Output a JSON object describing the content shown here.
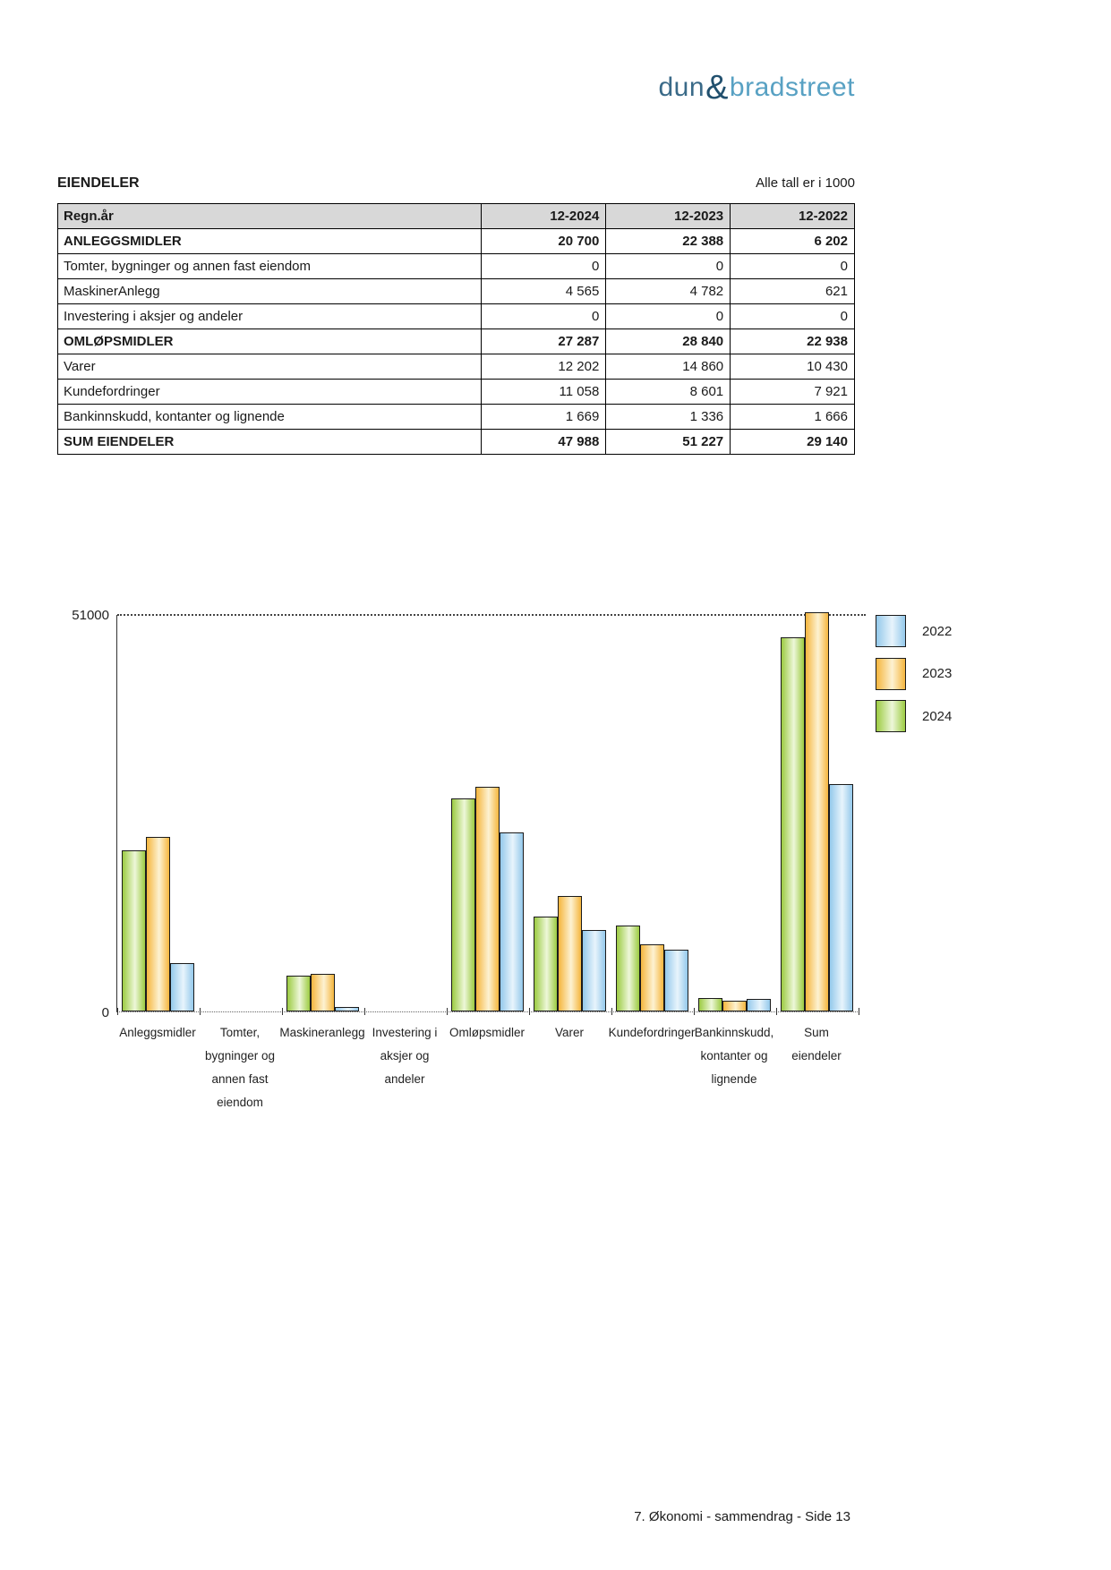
{
  "logo": {
    "part1": "dun",
    "amp": "&",
    "part2": "bradstreet"
  },
  "header": {
    "title": "EIENDELER",
    "note": "Alle tall er i 1000"
  },
  "table": {
    "year_label": "Regn.år",
    "columns": [
      "12-2024",
      "12-2023",
      "12-2022"
    ],
    "rows": [
      {
        "label": "ANLEGGSMIDLER",
        "values": [
          "20 700",
          "22 388",
          "6 202"
        ],
        "bold": true
      },
      {
        "label": "Tomter, bygninger og annen fast eiendom",
        "values": [
          "0",
          "0",
          "0"
        ],
        "bold": false
      },
      {
        "label": "MaskinerAnlegg",
        "values": [
          "4 565",
          "4 782",
          "621"
        ],
        "bold": false
      },
      {
        "label": "Investering i aksjer og andeler",
        "values": [
          "0",
          "0",
          "0"
        ],
        "bold": false
      },
      {
        "label": "OMLØPSMIDLER",
        "values": [
          "27 287",
          "28 840",
          "22 938"
        ],
        "bold": true
      },
      {
        "label": "Varer",
        "values": [
          "12 202",
          "14 860",
          "10 430"
        ],
        "bold": false
      },
      {
        "label": "Kundefordringer",
        "values": [
          "11 058",
          "8 601",
          "7 921"
        ],
        "bold": false
      },
      {
        "label": "Bankinnskudd, kontanter og lignende",
        "values": [
          "1 669",
          "1 336",
          "1 666"
        ],
        "bold": false
      },
      {
        "label": "SUM EIENDELER",
        "values": [
          "47 988",
          "51 227",
          "29 140"
        ],
        "bold": true
      }
    ]
  },
  "chart_data": {
    "type": "bar",
    "title": "",
    "xlabel": "",
    "ylabel": "",
    "ylim": [
      0,
      51000
    ],
    "gridline_value": 51000,
    "ytick_labels": {
      "max": "51000",
      "min": "0"
    },
    "grid": "single dotted line at 51000",
    "legend_position": "right",
    "categories": [
      "Anleggsmidler",
      "Tomter, bygninger og annen fast eiendom",
      "Maskineranlegg",
      "Investering i aksjer og andeler",
      "Omløpsmidler",
      "Varer",
      "Kundefordringer",
      "Bankinnskudd, kontanter og lignende",
      "Sum eiendeler"
    ],
    "categories_lines": [
      [
        "Anleggsmidler"
      ],
      [
        "Tomter,",
        "bygninger og",
        "annen fast",
        "eiendom"
      ],
      [
        "Maskineranlegg"
      ],
      [
        "Investering i",
        "aksjer og",
        "andeler"
      ],
      [
        "Omløpsmidler"
      ],
      [
        "Varer"
      ],
      [
        "Kundefordringer"
      ],
      [
        "Bankinnskudd,",
        "kontanter og",
        "lignende"
      ],
      [
        "Sum eiendeler"
      ]
    ],
    "series": [
      {
        "name": "2022",
        "color": "#94C9EB",
        "color_light": "#E8F4FC",
        "values": [
          6202,
          0,
          621,
          0,
          22938,
          10430,
          7921,
          1666,
          29140
        ]
      },
      {
        "name": "2023",
        "color": "#F5B63E",
        "color_light": "#FDF2D2",
        "values": [
          22388,
          0,
          4782,
          0,
          28840,
          14860,
          8601,
          1336,
          51227
        ]
      },
      {
        "name": "2024",
        "color": "#9CCB42",
        "color_light": "#EDF7D9",
        "values": [
          20700,
          0,
          4565,
          0,
          27287,
          12202,
          11058,
          1669,
          47988
        ]
      }
    ],
    "bar_order": [
      2,
      1,
      0
    ]
  },
  "footer": {
    "text": "7. Økonomi - sammendrag - Side 13"
  }
}
